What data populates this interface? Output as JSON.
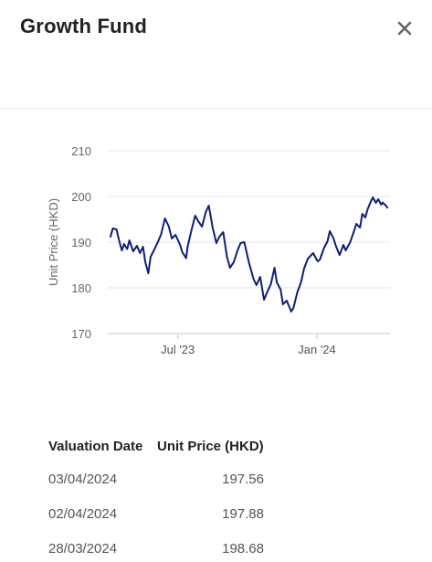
{
  "modal": {
    "title": "Growth Fund",
    "close_icon": "close-icon"
  },
  "chart_data": {
    "type": "line",
    "title": "",
    "xlabel": "",
    "ylabel": "Unit Price (HKD)",
    "ylim": [
      170,
      210
    ],
    "yticks": [
      170,
      180,
      190,
      200,
      210
    ],
    "xticks": [
      {
        "label": "Jul '23",
        "x": "2023-07-01"
      },
      {
        "label": "Jan '24",
        "x": "2024-01-01"
      }
    ],
    "grid": true,
    "series": [
      {
        "color": "#0d1f7a",
        "points": [
          [
            "2023-04-03",
            191.2
          ],
          [
            "2023-04-06",
            193.0
          ],
          [
            "2023-04-11",
            192.8
          ],
          [
            "2023-04-14",
            190.6
          ],
          [
            "2023-04-18",
            188.2
          ],
          [
            "2023-04-21",
            189.6
          ],
          [
            "2023-04-25",
            188.5
          ],
          [
            "2023-04-28",
            190.4
          ],
          [
            "2023-05-03",
            188.0
          ],
          [
            "2023-05-08",
            189.2
          ],
          [
            "2023-05-12",
            187.6
          ],
          [
            "2023-05-16",
            189.0
          ],
          [
            "2023-05-19",
            185.6
          ],
          [
            "2023-05-23",
            183.2
          ],
          [
            "2023-05-26",
            186.8
          ],
          [
            "2023-05-31",
            188.4
          ],
          [
            "2023-06-05",
            190.2
          ],
          [
            "2023-06-09",
            191.8
          ],
          [
            "2023-06-14",
            195.2
          ],
          [
            "2023-06-19",
            193.5
          ],
          [
            "2023-06-23",
            190.8
          ],
          [
            "2023-06-28",
            191.6
          ],
          [
            "2023-07-04",
            189.4
          ],
          [
            "2023-07-07",
            187.8
          ],
          [
            "2023-07-12",
            186.5
          ],
          [
            "2023-07-14",
            189.0
          ],
          [
            "2023-07-19",
            192.6
          ],
          [
            "2023-07-24",
            195.8
          ],
          [
            "2023-07-28",
            194.6
          ],
          [
            "2023-08-02",
            193.4
          ],
          [
            "2023-08-07",
            196.6
          ],
          [
            "2023-08-11",
            198.0
          ],
          [
            "2023-08-16",
            193.2
          ],
          [
            "2023-08-21",
            189.8
          ],
          [
            "2023-08-25",
            191.2
          ],
          [
            "2023-08-30",
            192.2
          ],
          [
            "2023-09-04",
            186.8
          ],
          [
            "2023-09-08",
            184.4
          ],
          [
            "2023-09-13",
            185.6
          ],
          [
            "2023-09-18",
            188.2
          ],
          [
            "2023-09-22",
            189.8
          ],
          [
            "2023-09-27",
            190.0
          ],
          [
            "2023-10-03",
            185.6
          ],
          [
            "2023-10-09",
            182.0
          ],
          [
            "2023-10-13",
            180.6
          ],
          [
            "2023-10-18",
            182.4
          ],
          [
            "2023-10-23",
            177.4
          ],
          [
            "2023-10-27",
            179.0
          ],
          [
            "2023-11-01",
            180.8
          ],
          [
            "2023-11-06",
            184.4
          ],
          [
            "2023-11-09",
            181.2
          ],
          [
            "2023-11-14",
            179.6
          ],
          [
            "2023-11-17",
            176.4
          ],
          [
            "2023-11-22",
            177.2
          ],
          [
            "2023-11-28",
            174.8
          ],
          [
            "2023-12-01",
            175.6
          ],
          [
            "2023-12-06",
            179.0
          ],
          [
            "2023-12-11",
            181.2
          ],
          [
            "2023-12-15",
            184.2
          ],
          [
            "2023-12-20",
            186.4
          ],
          [
            "2023-12-27",
            187.6
          ],
          [
            "2024-01-02",
            185.8
          ],
          [
            "2024-01-05",
            186.2
          ],
          [
            "2024-01-10",
            188.6
          ],
          [
            "2024-01-15",
            190.2
          ],
          [
            "2024-01-18",
            192.4
          ],
          [
            "2024-01-23",
            190.8
          ],
          [
            "2024-01-26",
            189.2
          ],
          [
            "2024-01-31",
            187.2
          ],
          [
            "2024-02-05",
            189.4
          ],
          [
            "2024-02-08",
            188.2
          ],
          [
            "2024-02-14",
            190.0
          ],
          [
            "2024-02-19",
            192.4
          ],
          [
            "2024-02-22",
            194.0
          ],
          [
            "2024-02-27",
            193.2
          ],
          [
            "2024-03-01",
            196.2
          ],
          [
            "2024-03-05",
            195.4
          ],
          [
            "2024-03-08",
            197.2
          ],
          [
            "2024-03-12",
            198.8
          ],
          [
            "2024-03-15",
            199.8
          ],
          [
            "2024-03-19",
            198.6
          ],
          [
            "2024-03-22",
            199.4
          ],
          [
            "2024-03-26",
            198.2
          ],
          [
            "2024-03-28",
            198.68
          ],
          [
            "2024-04-02",
            197.88
          ],
          [
            "2024-04-03",
            197.56
          ]
        ]
      }
    ]
  },
  "table": {
    "headers": {
      "date": "Valuation Date",
      "price": "Unit Price (HKD)"
    },
    "rows": [
      {
        "date": "03/04/2024",
        "price": "197.56"
      },
      {
        "date": "02/04/2024",
        "price": "197.88"
      },
      {
        "date": "28/03/2024",
        "price": "198.68"
      }
    ]
  }
}
